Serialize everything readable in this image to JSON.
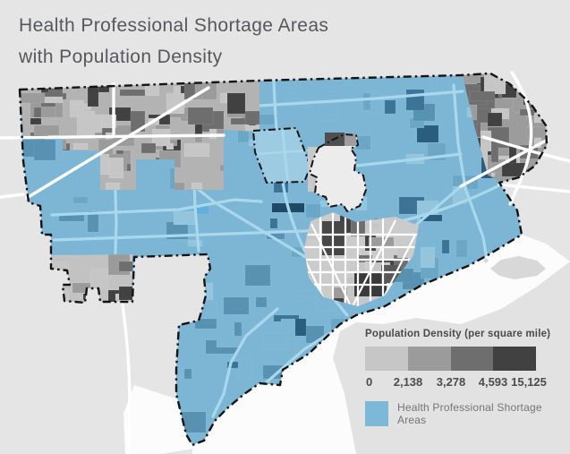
{
  "title": {
    "line1": "Health Professional Shortage Areas",
    "line2": "with Population Density"
  },
  "legend": {
    "density": {
      "title": "Population Density (per square mile)",
      "tick_labels": [
        "0",
        "2,138",
        "3,278",
        "4,593",
        "15,125"
      ],
      "class_colors": [
        "#c6c6c6",
        "#9b9b9b",
        "#6e6e6e",
        "#414141"
      ]
    },
    "hpsa": {
      "label": "Health Professional Shortage Areas",
      "color": "#7cb9d8"
    }
  },
  "map": {
    "palette": {
      "land": "#e5e5e6",
      "water": "#fcfcfd",
      "neighbor_land": "#e2e2e3",
      "island": "#d8d8d8",
      "base_blue": "#7db6d4",
      "road_blue": "#a9d8ec",
      "road_white": "#ffffff",
      "blues": [
        "#93c6de",
        "#7db6d4",
        "#6ba6c4",
        "#5892b2",
        "#3d7396",
        "#2a5d7e"
      ],
      "density_grays": [
        "#c6c6c6",
        "#9b9b9b",
        "#6e6e6e",
        "#414141"
      ],
      "highlight_blue": "#5fb0dc",
      "dark_blue_tract": "#1e4a68",
      "enclave_fill": "#ececec",
      "boundary": "#141414"
    }
  }
}
